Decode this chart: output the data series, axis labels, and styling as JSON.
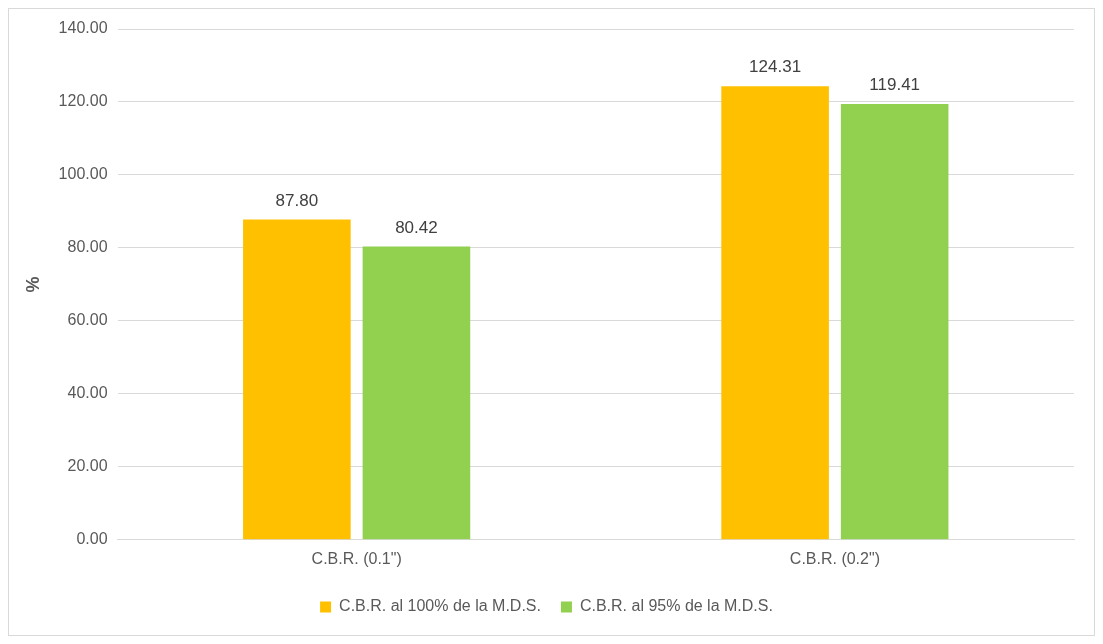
{
  "chart_data": {
    "type": "bar",
    "ylabel": "%",
    "categories": [
      "C.B.R. (0.1\")",
      "C.B.R. (0.2\")"
    ],
    "series": [
      {
        "name": "C.B.R. al 100% de la M.D.S.",
        "color": "#ffc000",
        "values": [
          87.8,
          124.31
        ],
        "value_labels": [
          "87.80",
          "124.31"
        ]
      },
      {
        "name": "C.B.R. al 95% de la M.D.S.",
        "color": "#92d050",
        "values": [
          80.42,
          119.41
        ],
        "value_labels": [
          "80.42",
          "119.41"
        ]
      }
    ],
    "ylim": [
      0,
      140
    ],
    "yticks": [
      {
        "value": 0,
        "label": "0.00"
      },
      {
        "value": 20,
        "label": "20.00"
      },
      {
        "value": 40,
        "label": "40.00"
      },
      {
        "value": 60,
        "label": "60.00"
      },
      {
        "value": 80,
        "label": "80.00"
      },
      {
        "value": 100,
        "label": "100.00"
      },
      {
        "value": 120,
        "label": "120.00"
      },
      {
        "value": 140,
        "label": "140.00"
      }
    ],
    "grid": "y",
    "legend": "bottom"
  }
}
